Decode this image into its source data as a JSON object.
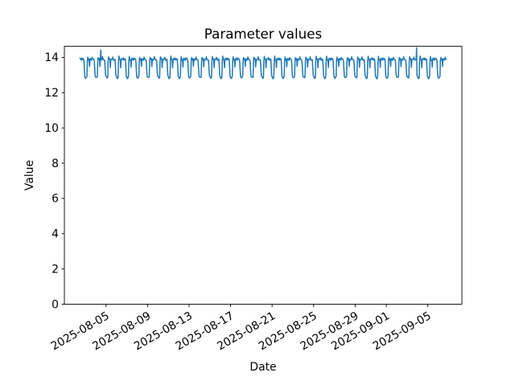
{
  "chart_data": {
    "type": "line",
    "title": "Parameter values",
    "xlabel": "Date",
    "ylabel": "Value",
    "line_color": "#1f77b4",
    "axis_color": "#000000",
    "background_color": "#ffffff",
    "grid": false,
    "legend": false,
    "ylim": [
      0,
      14.63
    ],
    "y_ticks": [
      0,
      2,
      4,
      6,
      8,
      10,
      12,
      14
    ],
    "x_ticks": [
      "2025-08-05",
      "2025-08-09",
      "2025-08-13",
      "2025-08-17",
      "2025-08-21",
      "2025-08-25",
      "2025-08-29",
      "2025-09-01",
      "2025-09-05"
    ],
    "x_tick_rotation_deg": -30,
    "series": {
      "name": "parameter",
      "start": "2025-08-02T12:00:00Z",
      "end": "2025-09-06T19:00:00Z",
      "interval_hours": 1,
      "value_range_typical": [
        12.8,
        14.1
      ],
      "daily_profile_by_hour": [
        12.9,
        12.85,
        12.83,
        12.85,
        12.9,
        13.8,
        14.03,
        13.9,
        13.87,
        13.9,
        13.45,
        13.85,
        13.92,
        13.88,
        13.9,
        13.87,
        14.0,
        13.9,
        13.87,
        13.9,
        13.88,
        13.85,
        13.4,
        12.95
      ],
      "jitter_amplitude": 0.04,
      "anomalies": [
        {
          "time": "2025-08-04T12:00:00Z",
          "value": 14.42
        },
        {
          "time": "2025-09-03T22:00:00Z",
          "value": 14.55
        }
      ]
    }
  }
}
